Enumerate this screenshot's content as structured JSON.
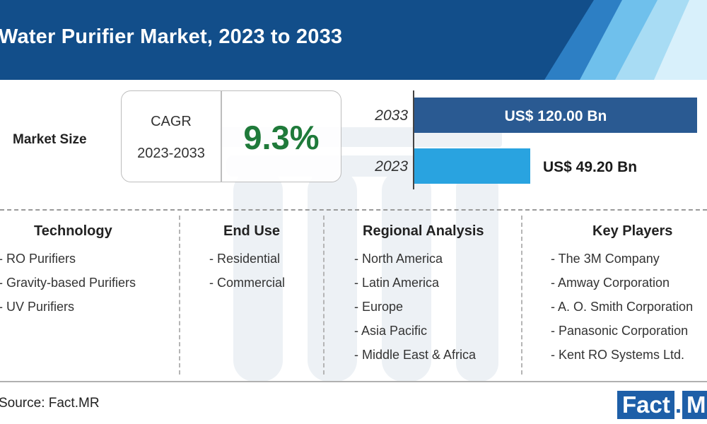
{
  "header": {
    "title": "Water Purifier Market, 2023 to 2033"
  },
  "market_size": {
    "label": "Market Size",
    "cagr_label": "CAGR",
    "cagr_period": "2023-2033",
    "cagr_value": "9.3%"
  },
  "chart_data": {
    "type": "bar",
    "orientation": "horizontal",
    "categories": [
      "2033",
      "2023"
    ],
    "values": [
      120.0,
      49.2
    ],
    "value_labels": [
      "US$ 120.00 Bn",
      "US$ 49.20 Bn"
    ],
    "unit": "US$ Bn",
    "colors": [
      "#2a5a92",
      "#29a3e0"
    ],
    "grid": false
  },
  "columns": [
    {
      "heading": "Technology",
      "items": [
        "- RO Purifiers",
        "- Gravity-based Purifiers",
        "- UV Purifiers"
      ]
    },
    {
      "heading": "End Use",
      "items": [
        "- Residential",
        "- Commercial"
      ]
    },
    {
      "heading": "Regional Analysis",
      "items": [
        "- North America",
        "- Latin America",
        "- Europe",
        "- Asia Pacific",
        "- Middle East & Africa"
      ]
    },
    {
      "heading": "Key Players",
      "items": [
        "- The 3M Company",
        "- Amway Corporation",
        "- A. O. Smith Corporation",
        "- Panasonic Corporation",
        "- Kent RO Systems Ltd."
      ]
    }
  ],
  "footer": {
    "source": "Source: Fact.MR",
    "logo_main": "Fact",
    "logo_sep": ".",
    "logo_end": "MR"
  },
  "colors": {
    "header_dark": "#124e8a",
    "header_light": "#9ed7f2",
    "cagr_green": "#1f7a3a"
  }
}
